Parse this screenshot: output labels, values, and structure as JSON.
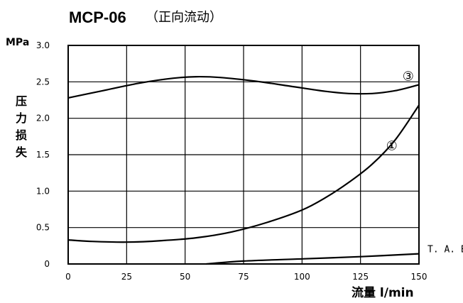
{
  "chart_data": {
    "type": "line",
    "title": "MCP-06",
    "subtitle": "（正向流动）",
    "y_unit": "MPa",
    "ylabel": "压力损失",
    "xlabel": "流量 l/min",
    "xlim": [
      0,
      150
    ],
    "ylim": [
      0,
      3.0
    ],
    "x_ticks": [
      "0",
      "25",
      "50",
      "75",
      "100",
      "125",
      "150"
    ],
    "y_ticks": [
      "0",
      "0.5",
      "1.0",
      "1.5",
      "2.0",
      "2.5",
      "3.0"
    ],
    "grid": true,
    "series": [
      {
        "name": "③",
        "x": [
          0,
          15,
          30,
          45,
          55,
          65,
          80,
          95,
          110,
          120,
          130,
          140,
          150
        ],
        "y": [
          2.28,
          2.38,
          2.48,
          2.55,
          2.57,
          2.56,
          2.51,
          2.44,
          2.37,
          2.34,
          2.34,
          2.38,
          2.46
        ]
      },
      {
        "name": "①",
        "x": [
          0,
          10,
          25,
          40,
          55,
          70,
          85,
          100,
          110,
          120,
          130,
          140,
          150
        ],
        "y": [
          0.33,
          0.31,
          0.3,
          0.32,
          0.36,
          0.44,
          0.57,
          0.74,
          0.91,
          1.12,
          1.37,
          1.71,
          2.18
        ]
      },
      {
        "name": "T. A. B.",
        "x": [
          59,
          75,
          100,
          125,
          150
        ],
        "y": [
          0.0,
          0.04,
          0.07,
          0.1,
          0.14
        ]
      }
    ]
  }
}
